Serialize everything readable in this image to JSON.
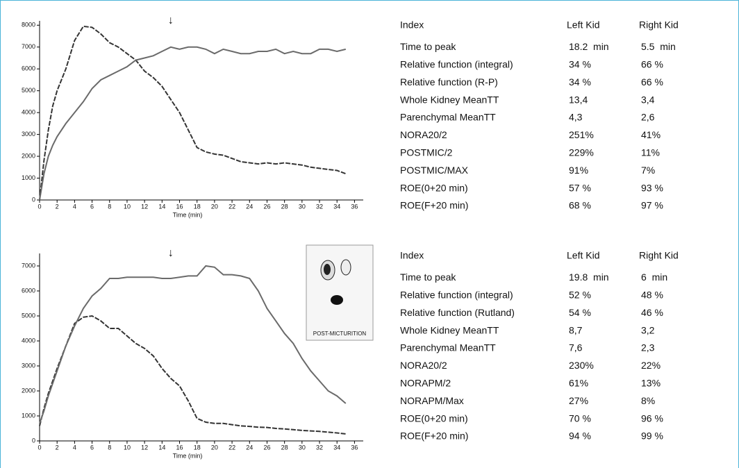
{
  "chart_data": [
    {
      "type": "line",
      "xlabel": "Time (min)",
      "xlim": [
        0,
        37
      ],
      "ylim": [
        0,
        8200
      ],
      "xticks": [
        0,
        2,
        4,
        6,
        8,
        10,
        12,
        14,
        16,
        18,
        20,
        22,
        24,
        26,
        28,
        30,
        32,
        34,
        36
      ],
      "yticks": [
        0,
        1000,
        2000,
        3000,
        4000,
        5000,
        6000,
        7000,
        8000
      ],
      "marker": {
        "label": "↓",
        "x": 15
      },
      "x": [
        0,
        0.5,
        1,
        1.5,
        2,
        3,
        4,
        5,
        6,
        7,
        8,
        9,
        10,
        11,
        12,
        13,
        14,
        15,
        16,
        17,
        18,
        19,
        20,
        21,
        22,
        23,
        24,
        25,
        26,
        27,
        28,
        29,
        30,
        31,
        32,
        33,
        34,
        35
      ],
      "series": [
        {
          "color": "#333333",
          "dashed": true,
          "values": [
            0,
            1800,
            3200,
            4300,
            5000,
            6000,
            7300,
            7950,
            7900,
            7600,
            7200,
            7000,
            6700,
            6400,
            5900,
            5600,
            5200,
            4600,
            4000,
            3200,
            2400,
            2200,
            2100,
            2050,
            1900,
            1750,
            1700,
            1650,
            1700,
            1650,
            1700,
            1650,
            1600,
            1500,
            1450,
            1400,
            1350,
            1200
          ]
        },
        {
          "color": "#6a6a6a",
          "dashed": false,
          "values": [
            0,
            1200,
            2000,
            2500,
            2900,
            3500,
            4000,
            4500,
            5100,
            5500,
            5700,
            5900,
            6100,
            6400,
            6500,
            6600,
            6800,
            7000,
            6900,
            7000,
            7000,
            6900,
            6700,
            6900,
            6800,
            6700,
            6700,
            6800,
            6800,
            6900,
            6700,
            6800,
            6700,
            6700,
            6900,
            6900,
            6800,
            6900
          ]
        }
      ]
    },
    {
      "type": "line",
      "xlabel": "Time (min)",
      "xlim": [
        0,
        37
      ],
      "ylim": [
        0,
        7500
      ],
      "xticks": [
        0,
        2,
        4,
        6,
        8,
        10,
        12,
        14,
        16,
        18,
        20,
        22,
        24,
        26,
        28,
        30,
        32,
        34,
        36
      ],
      "yticks": [
        0,
        1000,
        2000,
        3000,
        4000,
        5000,
        6000,
        7000
      ],
      "marker": {
        "label": "↓",
        "x": 15
      },
      "x": [
        0,
        0.5,
        1,
        1.5,
        2,
        3,
        4,
        5,
        6,
        7,
        8,
        9,
        10,
        11,
        12,
        13,
        14,
        15,
        16,
        17,
        18,
        19,
        20,
        21,
        22,
        23,
        24,
        25,
        26,
        27,
        28,
        29,
        30,
        31,
        32,
        33,
        34,
        35
      ],
      "series": [
        {
          "color": "#333333",
          "dashed": true,
          "values": [
            600,
            1300,
            1900,
            2400,
            2900,
            3800,
            4700,
            4950,
            5000,
            4800,
            4500,
            4500,
            4200,
            3900,
            3700,
            3400,
            2900,
            2500,
            2200,
            1600,
            900,
            750,
            700,
            700,
            650,
            600,
            580,
            550,
            540,
            500,
            480,
            450,
            420,
            400,
            380,
            350,
            320,
            280
          ]
        },
        {
          "color": "#6a6a6a",
          "dashed": false,
          "values": [
            700,
            1200,
            1800,
            2300,
            2800,
            3800,
            4600,
            5300,
            5800,
            6100,
            6500,
            6500,
            6550,
            6550,
            6550,
            6550,
            6500,
            6500,
            6550,
            6600,
            6600,
            7000,
            6950,
            6650,
            6650,
            6600,
            6500,
            6000,
            5300,
            4800,
            4300,
            3900,
            3300,
            2800,
            2400,
            2000,
            1800,
            1500
          ]
        }
      ]
    }
  ],
  "inset_label": "POST-MICTURITION",
  "tables": [
    {
      "header": [
        "Index",
        "Left Kid",
        "Right Kid"
      ],
      "rows": [
        [
          "Time to peak",
          "18.2  min",
          "5.5  min"
        ],
        [
          "Relative function (integral)",
          "34 %",
          "66 %"
        ],
        [
          "Relative function (R-P)",
          "34 %",
          "66 %"
        ],
        [
          "Whole Kidney MeanTT",
          "13,4",
          "3,4"
        ],
        [
          "Parenchymal MeanTT",
          "4,3",
          "2,6"
        ],
        [
          "NORA20/2",
          "251%",
          "41%"
        ],
        [
          "POSTMIC/2",
          "229%",
          "11%"
        ],
        [
          "POSTMIC/MAX",
          "91%",
          "7%"
        ],
        [
          "ROE(0+20 min)",
          "57 %",
          "93 %"
        ],
        [
          "ROE(F+20 min)",
          "68 %",
          "97 %"
        ]
      ]
    },
    {
      "header": [
        "Index",
        "Left Kid",
        "Right Kid"
      ],
      "rows": [
        [
          "Time to peak",
          "19.8  min",
          "6  min"
        ],
        [
          "Relative function (integral)",
          "52 %",
          "48 %"
        ],
        [
          "Relative function (Rutland)",
          "54 %",
          "46 %"
        ],
        [
          "Whole Kidney MeanTT",
          "8,7",
          "3,2"
        ],
        [
          "Parenchymal MeanTT",
          "7,6",
          "2,3"
        ],
        [
          "NORA20/2",
          "230%",
          "22%"
        ],
        [
          "NORAPM/2",
          "61%",
          "13%"
        ],
        [
          "NORAPM/Max",
          "27%",
          "8%"
        ],
        [
          "ROE(0+20 min)",
          "70 %",
          "96 %"
        ],
        [
          "ROE(F+20 min)",
          "94 %",
          "99 %"
        ]
      ]
    }
  ]
}
